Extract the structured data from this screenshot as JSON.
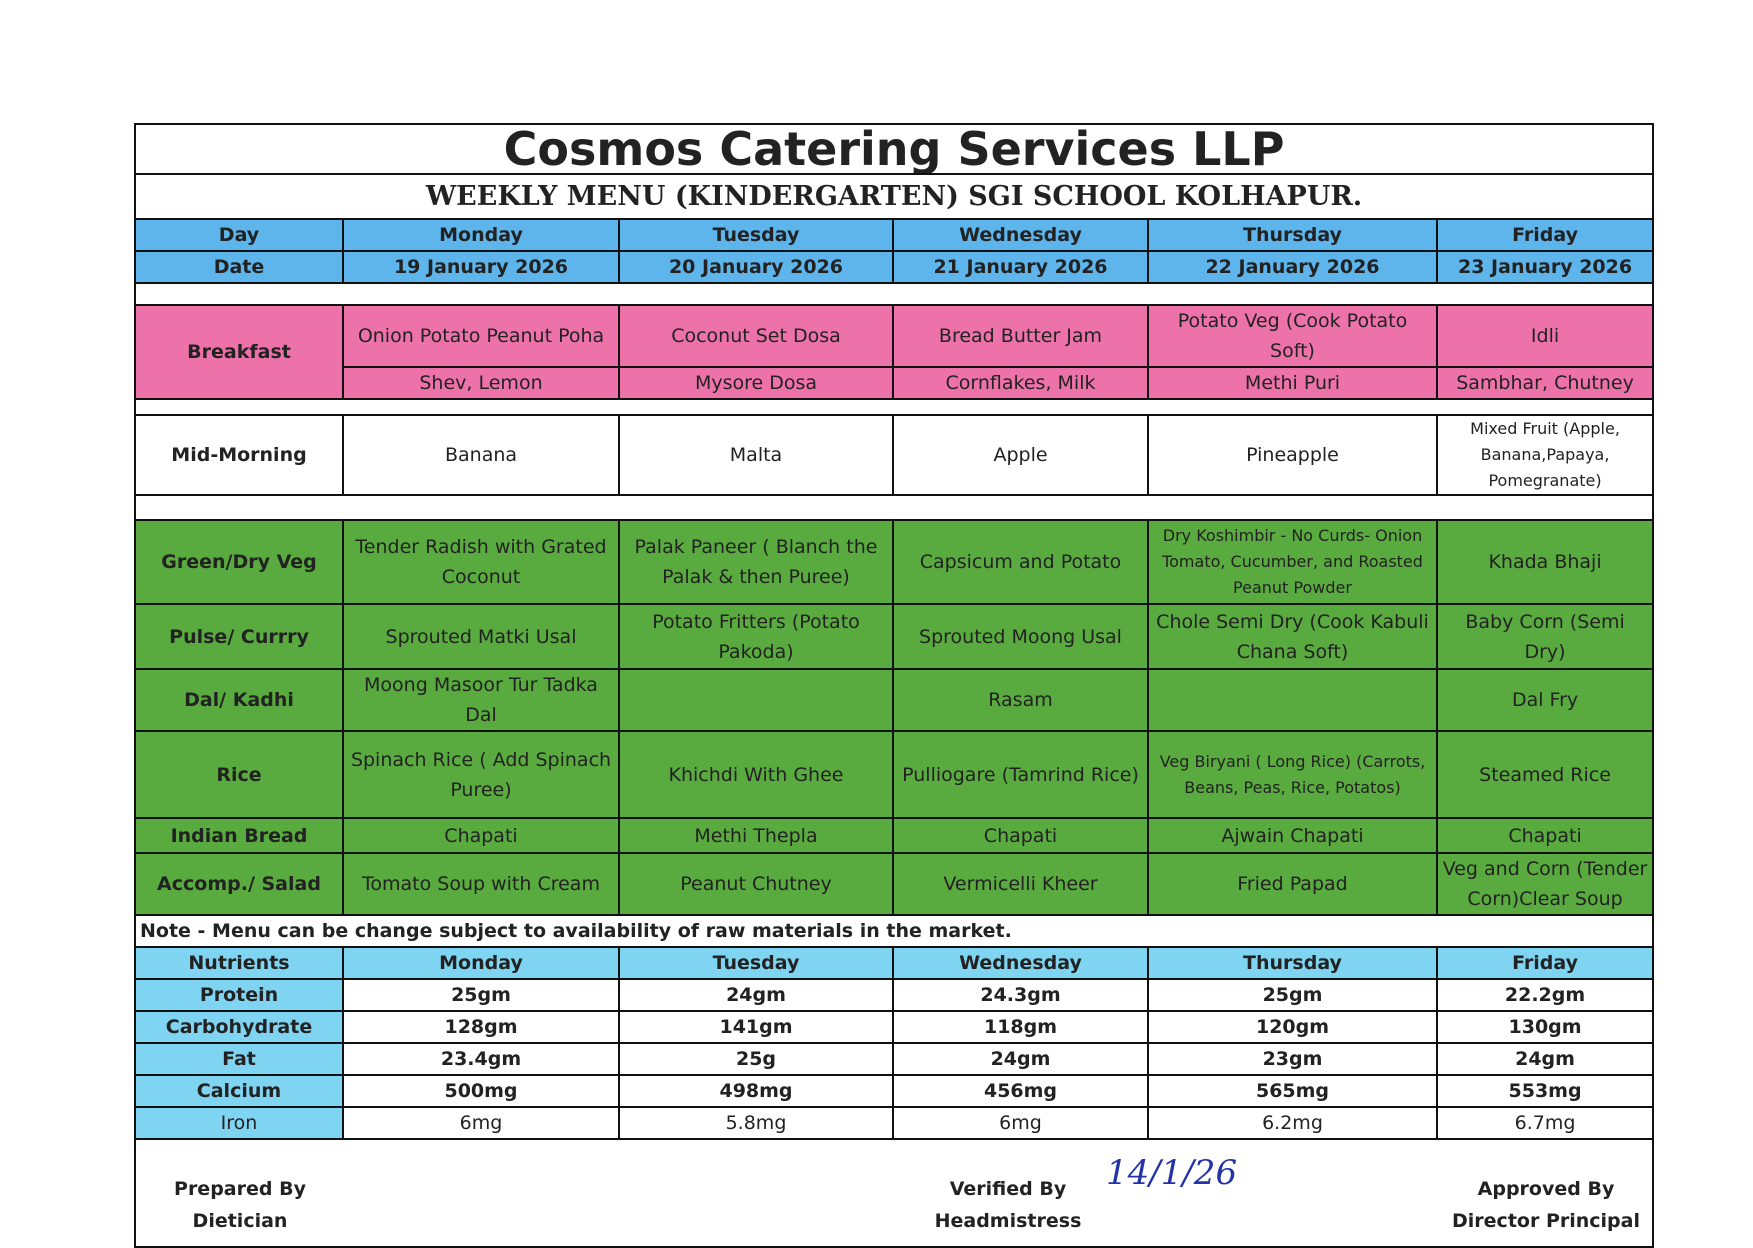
{
  "header": {
    "title": "Cosmos Catering Services LLP",
    "subtitle": "WEEKLY MENU (KINDERGARTEN) SGI SCHOOL KOLHAPUR."
  },
  "schedule": {
    "day_label": "Day",
    "days": [
      "Monday",
      "Tuesday",
      "Wednesday",
      "Thursday",
      "Friday"
    ],
    "date_label": "Date",
    "dates": [
      "19 January 2026",
      "20 January 2026",
      "21 January 2026",
      "22 January 2026",
      "23 January 2026"
    ]
  },
  "breakfast": {
    "label": "Breakfast",
    "items": [
      [
        "Onion Potato Peanut Poha",
        "Coconut Set Dosa",
        "Bread Butter Jam",
        "Potato Veg (Cook Potato Soft)",
        "Idli"
      ],
      [
        "Shev, Lemon",
        "Mysore Dosa",
        "Cornflakes, Milk",
        "Methi Puri",
        "Sambhar, Chutney"
      ]
    ]
  },
  "mid_morning": {
    "label": "Mid-Morning",
    "items": [
      "Banana",
      "Malta",
      "Apple",
      "Pineapple",
      "Mixed Fruit (Apple, Banana,Papaya, Pomegranate)"
    ]
  },
  "lunch": [
    {
      "label": "Green/Dry Veg",
      "items": [
        "Tender Radish with Grated Coconut",
        "Palak Paneer ( Blanch the Palak & then Puree)",
        "Capsicum and Potato",
        "Dry Koshimbir - No Curds- Onion Tomato, Cucumber, and Roasted Peanut Powder",
        "Khada Bhaji"
      ]
    },
    {
      "label": "Pulse/ Currry",
      "items": [
        "Sprouted Matki Usal",
        "Potato Fritters (Potato Pakoda)",
        "Sprouted Moong Usal",
        "Chole Semi Dry (Cook Kabuli Chana Soft)",
        "Baby Corn (Semi Dry)"
      ]
    },
    {
      "label": "Dal/ Kadhi",
      "items": [
        "Moong Masoor Tur Tadka Dal",
        null,
        "Rasam",
        null,
        "Dal Fry"
      ]
    },
    {
      "label": "Rice",
      "items": [
        "Spinach Rice ( Add Spinach Puree)",
        "Khichdi With Ghee",
        "Pulliogare (Tamrind Rice)",
        "Veg Biryani ( Long Rice) (Carrots, Beans, Peas, Rice, Potatos)",
        "Steamed Rice"
      ]
    },
    {
      "label": "Indian Bread",
      "items": [
        "Chapati",
        "Methi Thepla",
        "Chapati",
        "Ajwain Chapati",
        "Chapati"
      ]
    },
    {
      "label": "Accomp./ Salad",
      "items": [
        "Tomato Soup with Cream",
        "Peanut Chutney",
        "Vermicelli Kheer",
        "Fried Papad",
        "Veg and Corn (Tender Corn)Clear Soup"
      ]
    }
  ],
  "note": "Note - Menu can be change subject to availability of raw materials in the market.",
  "nutrients": {
    "label": "Nutrients",
    "rows": [
      {
        "label": "Protein",
        "values": [
          "25gm",
          "24gm",
          "24.3gm",
          "25gm",
          "22.2gm"
        ]
      },
      {
        "label": "Carbohydrate",
        "values": [
          "128gm",
          "141gm",
          "118gm",
          "120gm",
          "130gm"
        ]
      },
      {
        "label": "Fat",
        "values": [
          "23.4gm",
          "25g",
          "24gm",
          "23gm",
          "24gm"
        ]
      },
      {
        "label": "Calcium",
        "values": [
          "500mg",
          "498mg",
          "456mg",
          "565mg",
          "553mg"
        ]
      },
      {
        "label": "Iron",
        "values": [
          "6mg",
          "5.8mg",
          "6mg",
          "6.2mg",
          "6.7mg"
        ]
      }
    ]
  },
  "footer": {
    "prepared_by": "Prepared By",
    "prepared_role": "Dietician",
    "verified_by": "Verified By",
    "verified_role": "Headmistress",
    "approved_by": "Approved By",
    "approved_role": "Director Principal",
    "signed_date": "14/1/26"
  }
}
